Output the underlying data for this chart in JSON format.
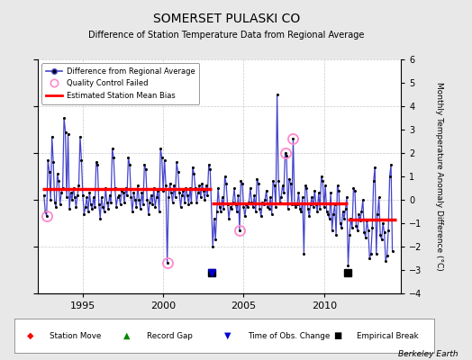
{
  "title": "SOMERSET PULASKI CO",
  "subtitle": "Difference of Station Temperature Data from Regional Average",
  "ylabel": "Monthly Temperature Anomaly Difference (°C)",
  "ylim": [
    -4,
    6
  ],
  "xlim": [
    1992.2,
    2014.8
  ],
  "background_color": "#e8e8e8",
  "plot_bg_color": "#ffffff",
  "grid_color": "#c8c8c8",
  "line_color": "#4444cc",
  "marker_color": "#000000",
  "bias_color": "#ff0000",
  "berkeley_earth_text": "Berkeley Earth",
  "segments": [
    {
      "x_start": 1992.5,
      "x_end": 2003.0,
      "bias": 0.45
    },
    {
      "x_start": 2003.0,
      "x_end": 2011.5,
      "bias": -0.15
    },
    {
      "x_start": 2011.5,
      "x_end": 2014.5,
      "bias": -0.85
    }
  ],
  "empirical_breaks": [
    2003.0,
    2011.5
  ],
  "time_obs_changes": [
    2003.0
  ],
  "qc_failed_positions": [
    [
      1992.75,
      -0.7
    ],
    [
      2000.25,
      -2.7
    ],
    [
      2004.75,
      -1.3
    ],
    [
      2007.583,
      2.0
    ],
    [
      2008.083,
      2.6
    ]
  ],
  "monthly_data": [
    [
      1992.583,
      0.2
    ],
    [
      1992.667,
      -0.5
    ],
    [
      1992.75,
      -0.7
    ],
    [
      1992.833,
      1.7
    ],
    [
      1992.917,
      1.2
    ],
    [
      1993.0,
      0.0
    ],
    [
      1993.083,
      2.7
    ],
    [
      1993.167,
      1.6
    ],
    [
      1993.25,
      -0.1
    ],
    [
      1993.333,
      -0.3
    ],
    [
      1993.417,
      1.1
    ],
    [
      1993.5,
      0.8
    ],
    [
      1993.583,
      -0.2
    ],
    [
      1993.667,
      0.3
    ],
    [
      1993.75,
      0.5
    ],
    [
      1993.833,
      3.5
    ],
    [
      1993.917,
      2.9
    ],
    [
      1994.0,
      0.1
    ],
    [
      1994.083,
      2.8
    ],
    [
      1994.167,
      -0.4
    ],
    [
      1994.25,
      0.3
    ],
    [
      1994.333,
      0.0
    ],
    [
      1994.417,
      0.5
    ],
    [
      1994.5,
      0.1
    ],
    [
      1994.583,
      -0.3
    ],
    [
      1994.667,
      0.2
    ],
    [
      1994.75,
      0.6
    ],
    [
      1994.833,
      2.7
    ],
    [
      1994.917,
      1.7
    ],
    [
      1995.0,
      0.2
    ],
    [
      1995.083,
      -0.6
    ],
    [
      1995.167,
      -0.3
    ],
    [
      1995.25,
      0.1
    ],
    [
      1995.333,
      -0.5
    ],
    [
      1995.417,
      0.3
    ],
    [
      1995.5,
      -0.2
    ],
    [
      1995.583,
      -0.4
    ],
    [
      1995.667,
      0.1
    ],
    [
      1995.75,
      -0.3
    ],
    [
      1995.833,
      1.6
    ],
    [
      1995.917,
      1.5
    ],
    [
      1996.0,
      -0.2
    ],
    [
      1996.083,
      -0.8
    ],
    [
      1996.167,
      0.1
    ],
    [
      1996.25,
      -0.3
    ],
    [
      1996.333,
      -0.5
    ],
    [
      1996.417,
      0.5
    ],
    [
      1996.5,
      -0.1
    ],
    [
      1996.583,
      -0.4
    ],
    [
      1996.667,
      0.2
    ],
    [
      1996.75,
      -0.1
    ],
    [
      1996.833,
      2.2
    ],
    [
      1996.917,
      1.8
    ],
    [
      1997.0,
      0.5
    ],
    [
      1997.083,
      -0.3
    ],
    [
      1997.167,
      0.1
    ],
    [
      1997.25,
      0.2
    ],
    [
      1997.333,
      -0.2
    ],
    [
      1997.417,
      0.4
    ],
    [
      1997.5,
      0.3
    ],
    [
      1997.583,
      -0.1
    ],
    [
      1997.667,
      0.5
    ],
    [
      1997.75,
      0.2
    ],
    [
      1997.833,
      1.8
    ],
    [
      1997.917,
      1.5
    ],
    [
      1998.0,
      0.1
    ],
    [
      1998.083,
      -0.5
    ],
    [
      1998.167,
      0.3
    ],
    [
      1998.25,
      0.0
    ],
    [
      1998.333,
      -0.3
    ],
    [
      1998.417,
      0.6
    ],
    [
      1998.5,
      0.0
    ],
    [
      1998.583,
      -0.4
    ],
    [
      1998.667,
      0.3
    ],
    [
      1998.75,
      -0.2
    ],
    [
      1998.833,
      1.5
    ],
    [
      1998.917,
      1.3
    ],
    [
      1999.0,
      0.0
    ],
    [
      1999.083,
      -0.6
    ],
    [
      1999.167,
      -0.1
    ],
    [
      1999.25,
      0.2
    ],
    [
      1999.333,
      -0.2
    ],
    [
      1999.417,
      0.5
    ],
    [
      1999.5,
      -0.3
    ],
    [
      1999.583,
      0.1
    ],
    [
      1999.667,
      0.4
    ],
    [
      1999.75,
      -0.5
    ],
    [
      1999.833,
      2.2
    ],
    [
      1999.917,
      1.8
    ],
    [
      2000.0,
      0.4
    ],
    [
      2000.083,
      1.7
    ],
    [
      2000.167,
      0.6
    ],
    [
      2000.25,
      -2.7
    ],
    [
      2000.333,
      0.1
    ],
    [
      2000.417,
      0.7
    ],
    [
      2000.5,
      0.3
    ],
    [
      2000.583,
      -0.1
    ],
    [
      2000.667,
      0.6
    ],
    [
      2000.75,
      0.1
    ],
    [
      2000.833,
      1.6
    ],
    [
      2000.917,
      1.2
    ],
    [
      2001.0,
      0.3
    ],
    [
      2001.083,
      -0.3
    ],
    [
      2001.167,
      0.2
    ],
    [
      2001.25,
      0.4
    ],
    [
      2001.333,
      -0.1
    ],
    [
      2001.417,
      0.5
    ],
    [
      2001.5,
      0.2
    ],
    [
      2001.583,
      -0.2
    ],
    [
      2001.667,
      0.5
    ],
    [
      2001.75,
      -0.1
    ],
    [
      2001.833,
      1.4
    ],
    [
      2001.917,
      1.1
    ],
    [
      2002.0,
      0.5
    ],
    [
      2002.083,
      -0.1
    ],
    [
      2002.167,
      0.3
    ],
    [
      2002.25,
      0.6
    ],
    [
      2002.333,
      0.1
    ],
    [
      2002.417,
      0.7
    ],
    [
      2002.5,
      0.4
    ],
    [
      2002.583,
      0.0
    ],
    [
      2002.667,
      0.6
    ],
    [
      2002.75,
      0.2
    ],
    [
      2002.833,
      1.5
    ],
    [
      2002.917,
      1.3
    ],
    [
      2003.083,
      -2.0
    ],
    [
      2003.167,
      -0.8
    ],
    [
      2003.25,
      -1.7
    ],
    [
      2003.333,
      -0.5
    ],
    [
      2003.417,
      0.5
    ],
    [
      2003.5,
      -0.3
    ],
    [
      2003.583,
      -0.5
    ],
    [
      2003.667,
      0.1
    ],
    [
      2003.75,
      -0.4
    ],
    [
      2003.833,
      1.0
    ],
    [
      2003.917,
      0.7
    ],
    [
      2004.0,
      -0.2
    ],
    [
      2004.083,
      -0.8
    ],
    [
      2004.167,
      -0.3
    ],
    [
      2004.25,
      -0.4
    ],
    [
      2004.333,
      -0.1
    ],
    [
      2004.417,
      0.5
    ],
    [
      2004.5,
      -0.2
    ],
    [
      2004.583,
      -0.5
    ],
    [
      2004.667,
      0.2
    ],
    [
      2004.75,
      -1.3
    ],
    [
      2004.833,
      0.8
    ],
    [
      2004.917,
      0.7
    ],
    [
      2005.0,
      -0.3
    ],
    [
      2005.083,
      -0.7
    ],
    [
      2005.167,
      -0.2
    ],
    [
      2005.25,
      -0.3
    ],
    [
      2005.333,
      -0.1
    ],
    [
      2005.417,
      0.5
    ],
    [
      2005.5,
      -0.1
    ],
    [
      2005.583,
      -0.3
    ],
    [
      2005.667,
      0.2
    ],
    [
      2005.75,
      -0.5
    ],
    [
      2005.833,
      0.9
    ],
    [
      2005.917,
      0.7
    ],
    [
      2006.0,
      -0.4
    ],
    [
      2006.083,
      -0.7
    ],
    [
      2006.167,
      -0.1
    ],
    [
      2006.25,
      -0.2
    ],
    [
      2006.333,
      0.0
    ],
    [
      2006.417,
      0.4
    ],
    [
      2006.5,
      -0.3
    ],
    [
      2006.583,
      -0.4
    ],
    [
      2006.667,
      0.1
    ],
    [
      2006.75,
      -0.6
    ],
    [
      2006.833,
      0.8
    ],
    [
      2006.917,
      0.6
    ],
    [
      2007.0,
      -0.3
    ],
    [
      2007.083,
      4.5
    ],
    [
      2007.167,
      0.8
    ],
    [
      2007.25,
      -0.1
    ],
    [
      2007.333,
      0.1
    ],
    [
      2007.417,
      0.6
    ],
    [
      2007.5,
      0.3
    ],
    [
      2007.583,
      2.0
    ],
    [
      2007.667,
      1.9
    ],
    [
      2007.75,
      -0.4
    ],
    [
      2007.833,
      0.9
    ],
    [
      2007.917,
      0.7
    ],
    [
      2008.0,
      -0.2
    ],
    [
      2008.083,
      2.6
    ],
    [
      2008.167,
      -0.2
    ],
    [
      2008.25,
      -0.3
    ],
    [
      2008.333,
      -0.2
    ],
    [
      2008.417,
      0.3
    ],
    [
      2008.5,
      -0.4
    ],
    [
      2008.583,
      -0.5
    ],
    [
      2008.667,
      0.1
    ],
    [
      2008.75,
      -2.3
    ],
    [
      2008.833,
      0.6
    ],
    [
      2008.917,
      0.5
    ],
    [
      2009.0,
      -0.4
    ],
    [
      2009.083,
      -0.7
    ],
    [
      2009.167,
      -0.2
    ],
    [
      2009.25,
      0.1
    ],
    [
      2009.333,
      -0.3
    ],
    [
      2009.417,
      0.4
    ],
    [
      2009.5,
      -0.2
    ],
    [
      2009.583,
      -0.5
    ],
    [
      2009.667,
      0.3
    ],
    [
      2009.75,
      -0.4
    ],
    [
      2009.833,
      1.0
    ],
    [
      2009.917,
      0.8
    ],
    [
      2010.0,
      -0.3
    ],
    [
      2010.083,
      0.6
    ],
    [
      2010.167,
      -0.5
    ],
    [
      2010.25,
      -0.6
    ],
    [
      2010.333,
      -0.8
    ],
    [
      2010.417,
      0.3
    ],
    [
      2010.5,
      -1.3
    ],
    [
      2010.583,
      -0.6
    ],
    [
      2010.667,
      -0.2
    ],
    [
      2010.75,
      -1.5
    ],
    [
      2010.833,
      0.6
    ],
    [
      2010.917,
      0.4
    ],
    [
      2011.0,
      -1.0
    ],
    [
      2011.083,
      -1.2
    ],
    [
      2011.167,
      -0.5
    ],
    [
      2011.25,
      -0.8
    ],
    [
      2011.333,
      -0.4
    ],
    [
      2011.417,
      0.1
    ],
    [
      2011.5,
      -2.8
    ],
    [
      2011.583,
      -1.5
    ],
    [
      2011.667,
      -0.8
    ],
    [
      2011.75,
      -1.2
    ],
    [
      2011.833,
      0.5
    ],
    [
      2011.917,
      0.4
    ],
    [
      2012.0,
      -1.1
    ],
    [
      2012.083,
      -1.3
    ],
    [
      2012.167,
      -0.6
    ],
    [
      2012.25,
      -0.9
    ],
    [
      2012.333,
      -0.5
    ],
    [
      2012.417,
      0.0
    ],
    [
      2012.5,
      -1.4
    ],
    [
      2012.583,
      -1.6
    ],
    [
      2012.667,
      -0.9
    ],
    [
      2012.75,
      -1.3
    ],
    [
      2012.833,
      -2.5
    ],
    [
      2012.917,
      -2.3
    ],
    [
      2013.0,
      -1.2
    ],
    [
      2013.083,
      0.8
    ],
    [
      2013.167,
      1.4
    ],
    [
      2013.25,
      -2.3
    ],
    [
      2013.333,
      -0.6
    ],
    [
      2013.417,
      0.1
    ],
    [
      2013.5,
      -1.5
    ],
    [
      2013.583,
      -1.7
    ],
    [
      2013.667,
      -1.0
    ],
    [
      2013.75,
      -1.4
    ],
    [
      2013.833,
      -2.6
    ],
    [
      2013.917,
      -2.4
    ],
    [
      2014.0,
      -1.3
    ],
    [
      2014.083,
      1.0
    ],
    [
      2014.167,
      1.5
    ],
    [
      2014.25,
      -2.2
    ]
  ]
}
